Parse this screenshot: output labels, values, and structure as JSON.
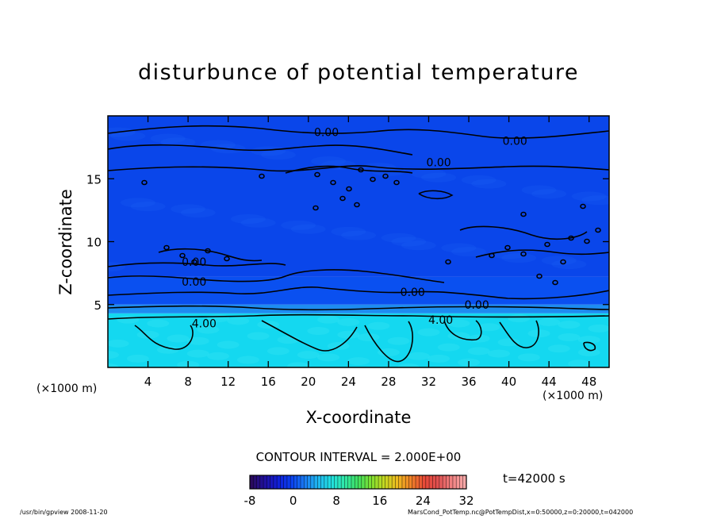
{
  "header": {
    "title": "disturbunce of potential temperature"
  },
  "chart_data": {
    "type": "heatmap",
    "title": "disturbunce of potential temperature",
    "xlabel": "X-coordinate",
    "ylabel": "Z-coordinate",
    "x_unit_left": "(×1000 m)",
    "x_unit_right": "(×1000 m)",
    "xlim": [
      0,
      50
    ],
    "ylim": [
      0,
      20
    ],
    "x_ticks": [
      4,
      8,
      12,
      16,
      20,
      24,
      28,
      32,
      36,
      40,
      44,
      48
    ],
    "y_ticks": [
      5,
      10,
      15
    ],
    "contour_interval": "CONTOUR INTERVAL = 2.000E+00",
    "contour_labels": [
      {
        "text": "0.00",
        "x": 21.8,
        "z": 18.7
      },
      {
        "text": "0.00",
        "x": 40.6,
        "z": 18.0
      },
      {
        "text": "0.00",
        "x": 33.0,
        "z": 16.3
      },
      {
        "text": "0.00",
        "x": 8.6,
        "z": 8.4
      },
      {
        "text": "0.00",
        "x": 8.6,
        "z": 6.8
      },
      {
        "text": "0.00",
        "x": 30.4,
        "z": 6.0
      },
      {
        "text": "0.00",
        "x": 36.8,
        "z": 5.0
      },
      {
        "text": "4.00",
        "x": 9.6,
        "z": 3.5
      },
      {
        "text": "4.00",
        "x": 33.2,
        "z": 3.8
      }
    ],
    "fields": [
      {
        "z_range": [
          0,
          4.3
        ],
        "value": 4,
        "color": "#14d8f0"
      },
      {
        "z_range": [
          4.3,
          5.0
        ],
        "value": 2,
        "color": "#1e8cf0"
      },
      {
        "z_range": [
          5.0,
          7.2
        ],
        "value": 0,
        "color": "#0a50f0"
      },
      {
        "z_range": [
          7.2,
          20
        ],
        "value": 0,
        "color": "#0a46ea"
      }
    ],
    "colorbar": {
      "ticks": [
        "-8",
        "0",
        "8",
        "16",
        "24",
        "32"
      ],
      "min": -8,
      "max": 32,
      "colors": [
        "#2a0a5e",
        "#2010a0",
        "#1020d8",
        "#0a40f0",
        "#1a7cf4",
        "#20b8f0",
        "#20e0e0",
        "#30e8a8",
        "#40e060",
        "#80e030",
        "#c8d820",
        "#f0b820",
        "#f08028",
        "#e84838",
        "#e05050",
        "#f08080",
        "#f8a8a8"
      ]
    },
    "time": "t=42000  s"
  },
  "footer": {
    "left": "/usr/bin/gpview   2008-11-20",
    "right": "MarsCond_PotTemp.nc@PotTempDist,x=0:50000,z=0:20000,t=042000"
  }
}
